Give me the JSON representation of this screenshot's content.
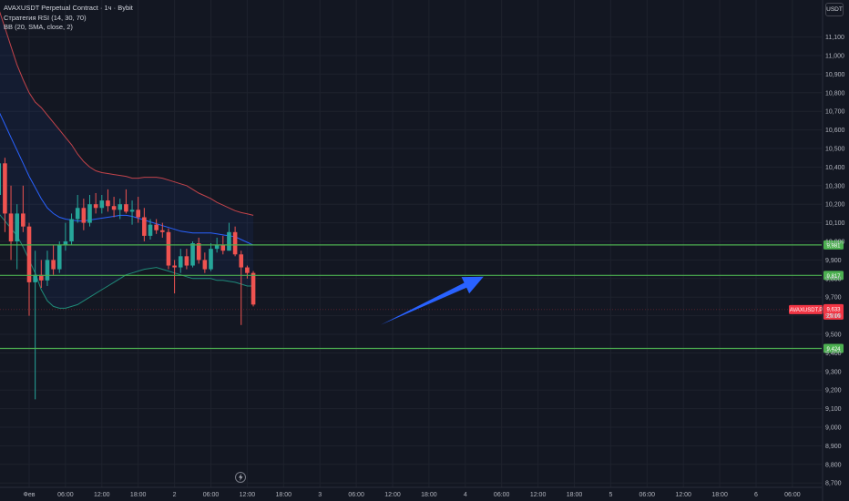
{
  "legend": {
    "symbol": "AVAXUSDT Perpetual Contract · 1ч · Bybit",
    "indicator1": "Стратегия RSI (14, 30, 70)",
    "indicator2": "BB (20, SMA, close, 2)"
  },
  "currency": "USDT",
  "colors": {
    "background": "#131722",
    "grid": "#1e222d",
    "up": "#26a69a",
    "down": "#ef5350",
    "bb_upper": "#c2434a",
    "bb_lower": "#1f8a78",
    "bb_basis": "#2962ff",
    "bb_fill": "#2962ff",
    "level_line": "#4caf50",
    "arrow": "#2962ff",
    "price_label": "#f23645"
  },
  "chart_data": {
    "type": "candlestick",
    "y_axis": {
      "range": [
        8700,
        11200
      ],
      "ticks": [
        8700,
        8800,
        8900,
        9000,
        9100,
        9200,
        9300,
        9400,
        9500,
        9600,
        9700,
        9800,
        9900,
        10000,
        10100,
        10200,
        10300,
        10400,
        10500,
        10600,
        10700,
        10800,
        10900,
        11000,
        11100
      ],
      "tick_labels": [
        "8,700",
        "8,800",
        "8,900",
        "9,000",
        "9,100",
        "9,200",
        "9,300",
        "9,400",
        "9,500",
        "9,600",
        "9,700",
        "9,800",
        "9,900",
        "10,000",
        "10,100",
        "10,200",
        "10,300",
        "10,400",
        "10,500",
        "10,600",
        "10,700",
        "10,800",
        "10,900",
        "11,000",
        "11,100"
      ]
    },
    "x_axis": {
      "tick_labels": [
        "Фев",
        "06:00",
        "12:00",
        "18:00",
        "2",
        "06:00",
        "12:00",
        "18:00",
        "3",
        "06:00",
        "12:00",
        "18:00",
        "4",
        "06:00",
        "12:00",
        "18:00",
        "5",
        "06:00",
        "12:00",
        "18:00",
        "6",
        "06:00"
      ],
      "tick_positions_hours": [
        0,
        6,
        12,
        18,
        24,
        30,
        36,
        42,
        48,
        54,
        60,
        66,
        72,
        78,
        84,
        90,
        96,
        102,
        108,
        114,
        120,
        126
      ]
    },
    "x_start_hours": -5,
    "candles": [
      {
        "o": 10250,
        "h": 10500,
        "l": 10200,
        "c": 10420
      },
      {
        "o": 10420,
        "h": 10450,
        "l": 10050,
        "c": 10150
      },
      {
        "o": 10150,
        "h": 10300,
        "l": 9900,
        "c": 10000
      },
      {
        "o": 10000,
        "h": 10200,
        "l": 9850,
        "c": 10150
      },
      {
        "o": 10150,
        "h": 10300,
        "l": 10050,
        "c": 10080
      },
      {
        "o": 10080,
        "h": 10100,
        "l": 9600,
        "c": 9780
      },
      {
        "o": 9780,
        "h": 9950,
        "l": 9150,
        "c": 9820
      },
      {
        "o": 9820,
        "h": 9900,
        "l": 9750,
        "c": 9790
      },
      {
        "o": 9790,
        "h": 9950,
        "l": 9760,
        "c": 9900
      },
      {
        "o": 9900,
        "h": 9980,
        "l": 9820,
        "c": 9850
      },
      {
        "o": 9850,
        "h": 10000,
        "l": 9830,
        "c": 9980
      },
      {
        "o": 9980,
        "h": 10100,
        "l": 9950,
        "c": 10000
      },
      {
        "o": 10000,
        "h": 10150,
        "l": 9980,
        "c": 10120
      },
      {
        "o": 10120,
        "h": 10250,
        "l": 10100,
        "c": 10180
      },
      {
        "o": 10180,
        "h": 10230,
        "l": 10060,
        "c": 10100
      },
      {
        "o": 10100,
        "h": 10250,
        "l": 10080,
        "c": 10200
      },
      {
        "o": 10200,
        "h": 10260,
        "l": 10150,
        "c": 10180
      },
      {
        "o": 10180,
        "h": 10250,
        "l": 10150,
        "c": 10220
      },
      {
        "o": 10220,
        "h": 10280,
        "l": 10160,
        "c": 10190
      },
      {
        "o": 10190,
        "h": 10240,
        "l": 10130,
        "c": 10170
      },
      {
        "o": 10170,
        "h": 10230,
        "l": 10120,
        "c": 10200
      },
      {
        "o": 10200,
        "h": 10280,
        "l": 10150,
        "c": 10160
      },
      {
        "o": 10160,
        "h": 10220,
        "l": 10090,
        "c": 10170
      },
      {
        "o": 10170,
        "h": 10240,
        "l": 10100,
        "c": 10130
      },
      {
        "o": 10130,
        "h": 10180,
        "l": 10000,
        "c": 10030
      },
      {
        "o": 10030,
        "h": 10120,
        "l": 10010,
        "c": 10090
      },
      {
        "o": 10090,
        "h": 10120,
        "l": 10040,
        "c": 10060
      },
      {
        "o": 10060,
        "h": 10100,
        "l": 10020,
        "c": 10050
      },
      {
        "o": 10050,
        "h": 10070,
        "l": 9850,
        "c": 9870
      },
      {
        "o": 9870,
        "h": 9900,
        "l": 9720,
        "c": 9860
      },
      {
        "o": 9860,
        "h": 9960,
        "l": 9830,
        "c": 9920
      },
      {
        "o": 9920,
        "h": 9960,
        "l": 9850,
        "c": 9870
      },
      {
        "o": 9870,
        "h": 10000,
        "l": 9860,
        "c": 9990
      },
      {
        "o": 9990,
        "h": 10020,
        "l": 9880,
        "c": 9900
      },
      {
        "o": 9900,
        "h": 9940,
        "l": 9830,
        "c": 9850
      },
      {
        "o": 9850,
        "h": 9990,
        "l": 9840,
        "c": 9960
      },
      {
        "o": 9960,
        "h": 10020,
        "l": 9940,
        "c": 9980
      },
      {
        "o": 9980,
        "h": 10030,
        "l": 9930,
        "c": 9950
      },
      {
        "o": 9950,
        "h": 10100,
        "l": 9950,
        "c": 10050
      },
      {
        "o": 10050,
        "h": 10080,
        "l": 9920,
        "c": 9930
      },
      {
        "o": 9930,
        "h": 9950,
        "l": 9550,
        "c": 9860
      },
      {
        "o": 9860,
        "h": 9870,
        "l": 9800,
        "c": 9830
      },
      {
        "o": 9830,
        "h": 9840,
        "l": 9650,
        "c": 9660
      }
    ],
    "bollinger": {
      "upper": [
        11250,
        11150,
        11050,
        10950,
        10870,
        10800,
        10750,
        10720,
        10680,
        10640,
        10600,
        10560,
        10520,
        10470,
        10430,
        10400,
        10380,
        10370,
        10365,
        10360,
        10355,
        10350,
        10340,
        10340,
        10345,
        10345,
        10345,
        10340,
        10330,
        10320,
        10310,
        10300,
        10280,
        10260,
        10245,
        10230,
        10210,
        10195,
        10180,
        10165,
        10155,
        10148,
        10140
      ],
      "basis": [
        10700,
        10630,
        10560,
        10490,
        10420,
        10350,
        10290,
        10230,
        10180,
        10150,
        10130,
        10120,
        10115,
        10110,
        10110,
        10115,
        10120,
        10125,
        10130,
        10135,
        10140,
        10140,
        10135,
        10125,
        10115,
        10105,
        10095,
        10085,
        10075,
        10065,
        10055,
        10050,
        10045,
        10045,
        10045,
        10045,
        10040,
        10035,
        10030,
        10025,
        10010,
        9995,
        9980
      ],
      "lower": [
        10150,
        10110,
        10070,
        10030,
        9970,
        9900,
        9830,
        9740,
        9680,
        9650,
        9640,
        9640,
        9650,
        9660,
        9680,
        9700,
        9720,
        9740,
        9760,
        9780,
        9800,
        9820,
        9830,
        9840,
        9850,
        9855,
        9860,
        9850,
        9840,
        9830,
        9820,
        9810,
        9800,
        9800,
        9800,
        9800,
        9790,
        9790,
        9785,
        9780,
        9770,
        9760,
        9760
      ]
    },
    "levels": [
      {
        "value": 9981,
        "label": "9,981"
      },
      {
        "value": 9817,
        "label": "9,817"
      },
      {
        "value": 9424,
        "label": "9,424"
      }
    ],
    "current_price": {
      "value": 9633,
      "label": "9,633",
      "tag": "AVAXUSDT.P",
      "countdown": "25:16"
    },
    "arrow": {
      "from": [
        58,
        9550
      ],
      "to": [
        75,
        9810
      ]
    }
  }
}
